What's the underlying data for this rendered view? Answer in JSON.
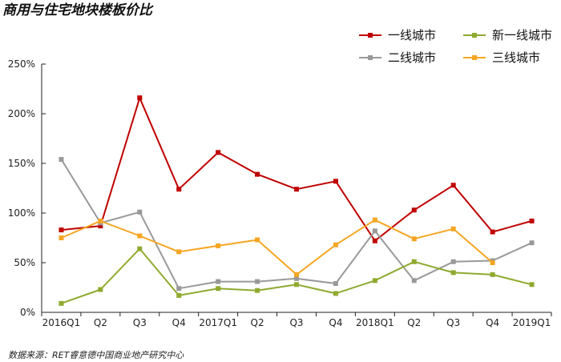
{
  "chart_data": {
    "type": "line",
    "title": "商用与住宅地块楼板价比",
    "source": "数据来源：RET睿意德中国商业地产研究中心",
    "categories": [
      "2016Q1",
      "Q2",
      "Q3",
      "Q4",
      "2017Q1",
      "Q2",
      "Q3",
      "Q4",
      "2018Q1",
      "Q2",
      "Q3",
      "Q4",
      "2019Q1"
    ],
    "ylim": [
      0,
      250
    ],
    "yticks": [
      0,
      50,
      100,
      150,
      200,
      250
    ],
    "ytick_labels": [
      "0%",
      "50%",
      "100%",
      "150%",
      "200%",
      "250%"
    ],
    "grid": false,
    "legend_position": "top-right",
    "series": [
      {
        "name": "一线城市",
        "color": "#c00000",
        "values": [
          83,
          87,
          216,
          124,
          161,
          139,
          124,
          132,
          72,
          103,
          128,
          81,
          92
        ]
      },
      {
        "name": "二线城市",
        "color": "#999999",
        "values": [
          154,
          90,
          101,
          24,
          31,
          31,
          34,
          29,
          82,
          32,
          51,
          52,
          70
        ]
      },
      {
        "name": "新一线城市",
        "color": "#8faa2f",
        "values": [
          9,
          23,
          64,
          17,
          24,
          22,
          28,
          19,
          32,
          51,
          40,
          38,
          28
        ]
      },
      {
        "name": "三线城市",
        "color": "#f5a623",
        "values": [
          75,
          92,
          77,
          61,
          67,
          73,
          38,
          68,
          93,
          74,
          84,
          50,
          null
        ]
      }
    ]
  }
}
